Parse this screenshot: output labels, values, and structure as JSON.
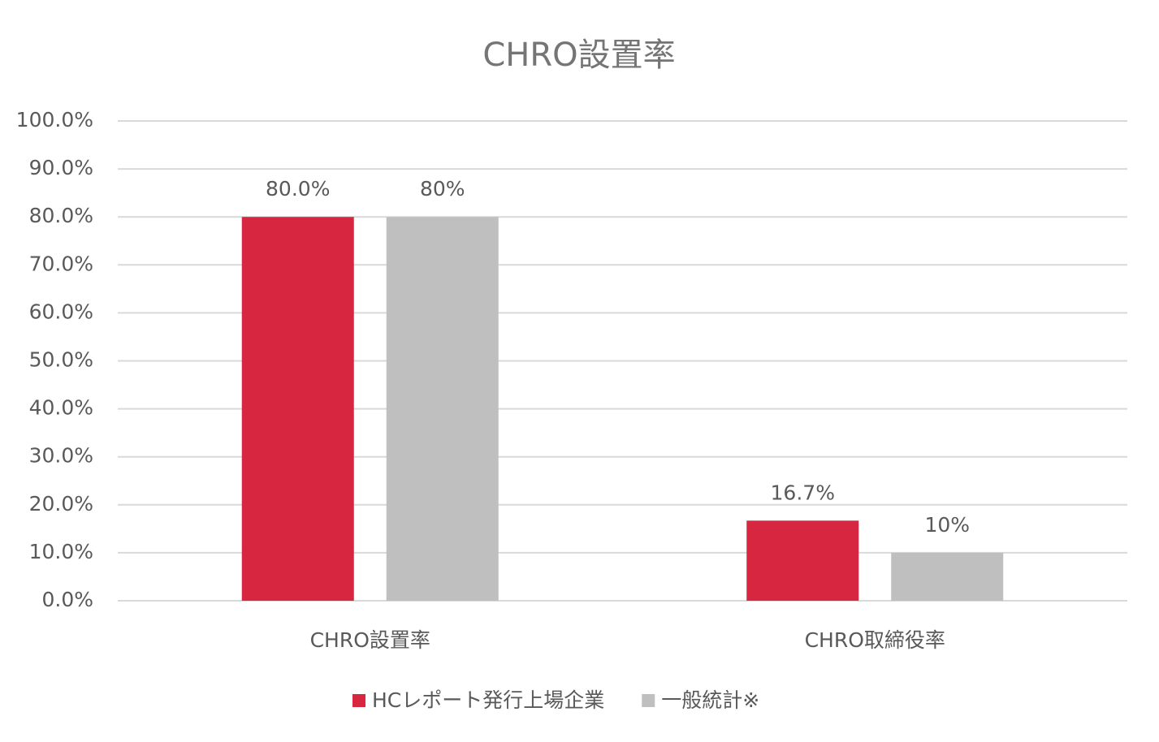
{
  "chart_data": {
    "type": "bar",
    "title": "CHRO設置率",
    "categories": [
      "CHRO設置率",
      "CHRO取締役率"
    ],
    "series": [
      {
        "name": "HCレポート発行上場企業",
        "color": "#d72640",
        "values": [
          80,
          16.7
        ],
        "value_labels": [
          "80.0%",
          "16.7%"
        ]
      },
      {
        "name": "一般統計※",
        "color": "#bfbfbf",
        "values": [
          80,
          10
        ],
        "value_labels": [
          "80%",
          "10%"
        ]
      }
    ],
    "ylim": [
      0,
      100
    ],
    "yticks": [
      {
        "value": 0,
        "label": "0.0%"
      },
      {
        "value": 10,
        "label": "10.0%"
      },
      {
        "value": 20,
        "label": "20.0%"
      },
      {
        "value": 30,
        "label": "30.0%"
      },
      {
        "value": 40,
        "label": "40.0%"
      },
      {
        "value": 50,
        "label": "50.0%"
      },
      {
        "value": 60,
        "label": "60.0%"
      },
      {
        "value": 70,
        "label": "70.0%"
      },
      {
        "value": 80,
        "label": "80.0%"
      },
      {
        "value": 90,
        "label": "90.0%"
      },
      {
        "value": 100,
        "label": "100.0%"
      }
    ],
    "grid": true,
    "legend": "bottom"
  }
}
